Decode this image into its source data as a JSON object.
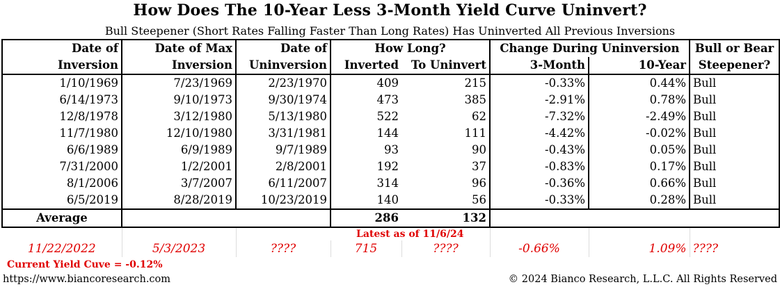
{
  "chart_data": {
    "type": "table",
    "title": "How Does The 10-Year Less 3-Month Yield Curve Uninvert?",
    "subtitle": "Bull Steepener (Short Rates Falling Faster Than Long Rates) Has Uninverted All Previous Inversions",
    "headers": {
      "row1": [
        "Date of",
        "Date of  Max",
        "Date of",
        "How Long?",
        "Change During Uninversion",
        "Bull or Bear"
      ],
      "row2": [
        "Inversion",
        "Inversion",
        "Uninversion",
        "Inverted",
        "To Uninvert",
        "3-Month",
        "10-Year",
        "Steepener?"
      ]
    },
    "rows": [
      [
        "1/10/1969",
        "7/23/1969",
        "2/23/1970",
        "409",
        "215",
        "-0.33%",
        "0.44%",
        "Bull"
      ],
      [
        "6/14/1973",
        "9/10/1973",
        "9/30/1974",
        "473",
        "385",
        "-2.91%",
        "0.78%",
        "Bull"
      ],
      [
        "12/8/1978",
        "3/12/1980",
        "5/13/1980",
        "522",
        "62",
        "-7.32%",
        "-2.49%",
        "Bull"
      ],
      [
        "11/7/1980",
        "12/10/1980",
        "3/31/1981",
        "144",
        "111",
        "-4.42%",
        "-0.02%",
        "Bull"
      ],
      [
        "6/6/1989",
        "6/9/1989",
        "9/7/1989",
        "93",
        "90",
        "-0.43%",
        "0.05%",
        "Bull"
      ],
      [
        "7/31/2000",
        "1/2/2001",
        "2/8/2001",
        "192",
        "37",
        "-0.83%",
        "0.17%",
        "Bull"
      ],
      [
        "8/1/2006",
        "3/7/2007",
        "6/11/2007",
        "314",
        "96",
        "-0.36%",
        "0.66%",
        "Bull"
      ],
      [
        "6/5/2019",
        "8/28/2019",
        "10/23/2019",
        "140",
        "56",
        "-0.33%",
        "0.28%",
        "Bull"
      ]
    ],
    "average": {
      "label": "Average",
      "inverted": "286",
      "to_uninvert": "132"
    },
    "latest_label": "Latest as of  11/6/24",
    "current": [
      "11/22/2022",
      "5/3/2023",
      "????",
      "715",
      "????",
      "-0.66%",
      "1.09%",
      "????"
    ],
    "current_yield_curve": "Current Yield Cuve =  -0.12%",
    "source_url": "https://www.biancoresearch.com",
    "copyright": "© 2024 Bianco Research, L.L.C. All Rights Reserved",
    "colors": {
      "text": "#000000",
      "highlight": "#e00000",
      "grid": "#dcdcdc"
    }
  }
}
